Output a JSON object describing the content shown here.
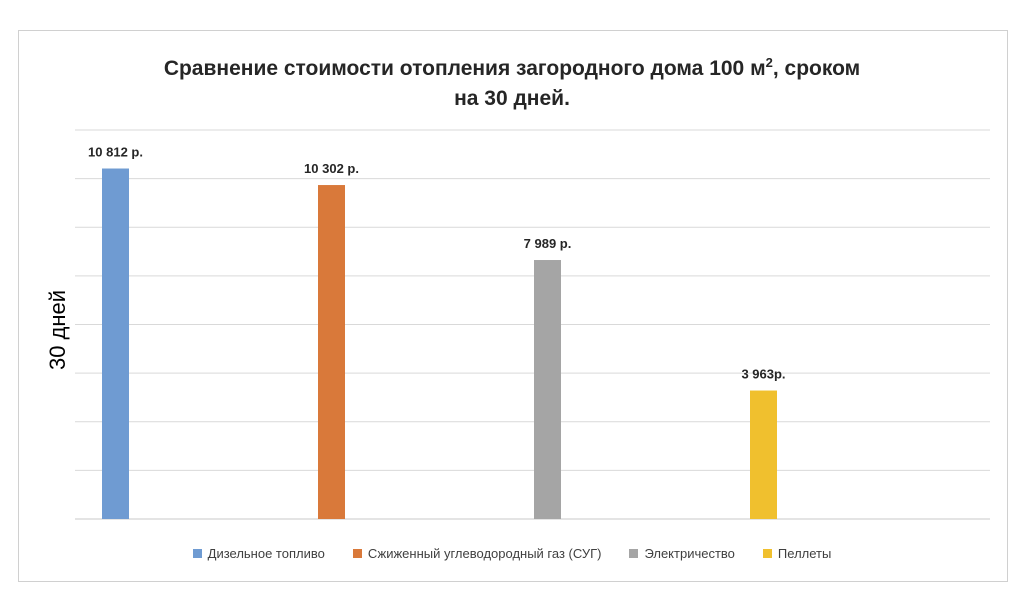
{
  "chart_data": {
    "type": "bar",
    "title_main": "Сравнение стоимости отопления загородного дома 100 м",
    "title_sup": "2",
    "title_tail": ", сроком",
    "title_line2": "на 30 дней.",
    "ylabel": "30 дней",
    "xlabel": "",
    "ylim": [
      0,
      12000
    ],
    "grid": true,
    "legend_position": "bottom",
    "series": [
      {
        "name": "Дизельное топливо",
        "value": 10812,
        "label": "10 812 р.",
        "color": "#6f9bd2"
      },
      {
        "name": "Сжиженный углеводородный газ (СУГ)",
        "value": 10302,
        "label": "10 302 р.",
        "color": "#d9793a"
      },
      {
        "name": "Электричество",
        "value": 7989,
        "label": "7 989 р.",
        "color": "#a5a5a5"
      },
      {
        "name": "Пеллеты",
        "value": 3963,
        "label": "3 963р.",
        "color": "#f0c02e"
      }
    ]
  }
}
